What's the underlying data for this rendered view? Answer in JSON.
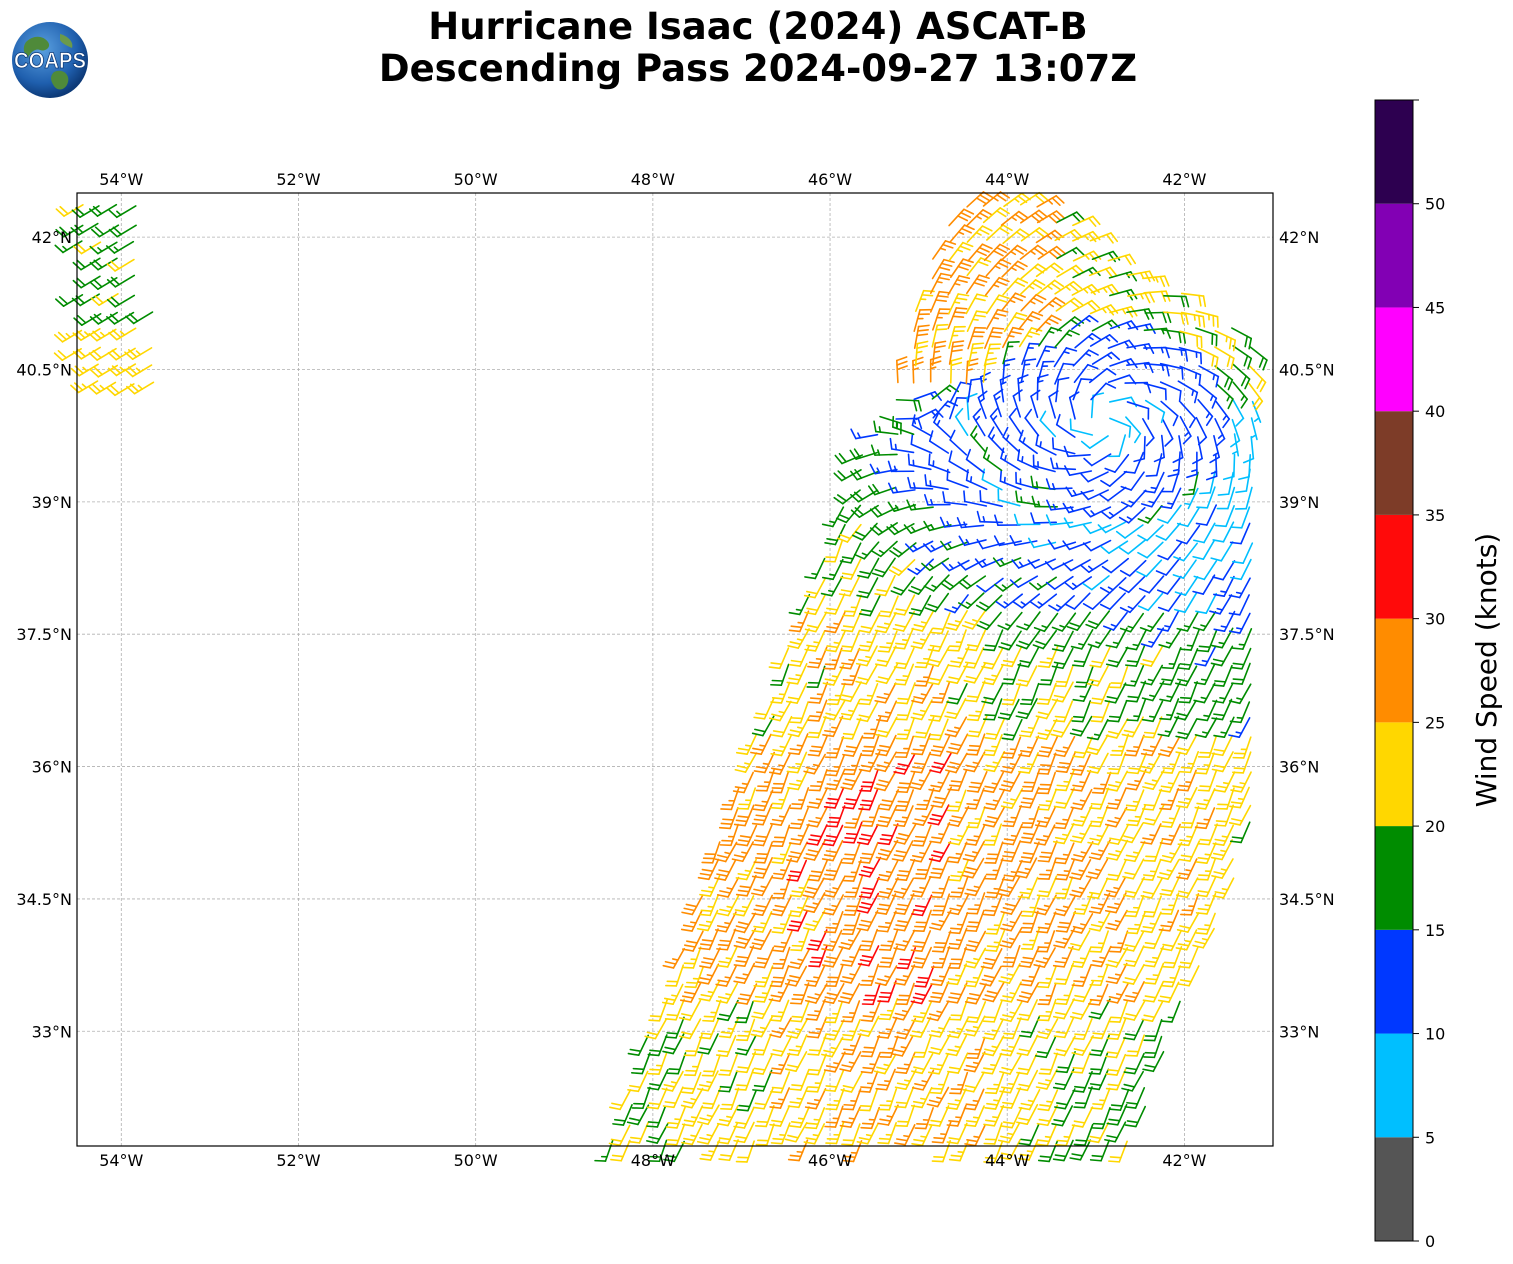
{
  "header": {
    "title_line1": "Hurricane Isaac (2024) ASCAT-B",
    "title_line2": "Descending Pass 2024-09-27 13:07Z",
    "logo_text": "COAPS"
  },
  "map": {
    "lon_range": [
      -54.5,
      -41.0
    ],
    "lat_range": [
      31.7,
      42.5
    ],
    "lon_ticks": [
      {
        "value": -54,
        "label": "54°W"
      },
      {
        "value": -52,
        "label": "52°W"
      },
      {
        "value": -50,
        "label": "50°W"
      },
      {
        "value": -48,
        "label": "48°W"
      },
      {
        "value": -46,
        "label": "46°W"
      },
      {
        "value": -44,
        "label": "44°W"
      },
      {
        "value": -42,
        "label": "42°W"
      }
    ],
    "lat_ticks": [
      {
        "value": 42,
        "label": "42°N"
      },
      {
        "value": 40.5,
        "label": "40.5°N"
      },
      {
        "value": 39,
        "label": "39°N"
      },
      {
        "value": 37.5,
        "label": "37.5°N"
      },
      {
        "value": 36,
        "label": "36°N"
      },
      {
        "value": 34.5,
        "label": "34.5°N"
      },
      {
        "value": 33,
        "label": "33°N"
      }
    ],
    "gridlines": true,
    "swaths": [
      {
        "name": "west-swath-edge",
        "lon_min": -54.5,
        "lon_max": -53.6,
        "lat_min": 40.2,
        "lat_max": 42.5
      },
      {
        "name": "main-swath",
        "polygon": [
          [
            -48.5,
            31.7
          ],
          [
            -42.6,
            31.7
          ],
          [
            -41.0,
            35.9
          ],
          [
            -41.0,
            40.7
          ],
          [
            -43.8,
            42.5
          ],
          [
            -44.6,
            42.5
          ],
          [
            -45.2,
            40.7
          ],
          [
            -47.0,
            36.0
          ]
        ]
      }
    ],
    "center": {
      "lon": -42.9,
      "lat": 39.9
    }
  },
  "colorbar": {
    "label": "Wind Speed (knots)",
    "range": [
      0,
      55
    ],
    "ticks": [
      0,
      5,
      10,
      15,
      20,
      25,
      30,
      35,
      40,
      45,
      50
    ],
    "bins": [
      {
        "min": 0,
        "max": 5,
        "color": "#555555"
      },
      {
        "min": 5,
        "max": 10,
        "color": "#00bfff"
      },
      {
        "min": 10,
        "max": 15,
        "color": "#0038ff"
      },
      {
        "min": 15,
        "max": 20,
        "color": "#008c00"
      },
      {
        "min": 20,
        "max": 25,
        "color": "#ffd700"
      },
      {
        "min": 25,
        "max": 30,
        "color": "#ff8c00"
      },
      {
        "min": 30,
        "max": 35,
        "color": "#ff0a0a"
      },
      {
        "min": 35,
        "max": 40,
        "color": "#7d3c28"
      },
      {
        "min": 40,
        "max": 45,
        "color": "#ff00ff"
      },
      {
        "min": 45,
        "max": 50,
        "color": "#8200b4"
      },
      {
        "min": 50,
        "max": 55,
        "color": "#2d0050"
      }
    ]
  }
}
